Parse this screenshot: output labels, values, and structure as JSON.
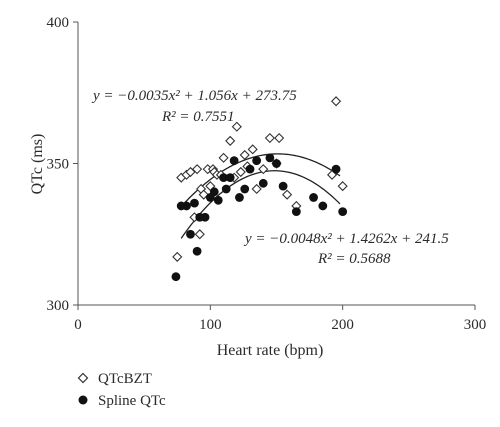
{
  "chart_data": {
    "type": "scatter",
    "title": "",
    "xlabel": "Heart rate (bpm)",
    "ylabel": "QTc (ms)",
    "xlim": [
      0,
      300
    ],
    "ylim": [
      300,
      400
    ],
    "xticks": [
      "0",
      "100",
      "200",
      "300"
    ],
    "yticks": [
      "300",
      "350",
      "400"
    ],
    "grid": false,
    "legend_position": "bottom-left",
    "series": [
      {
        "name": "QTcBZT",
        "marker": "open-diamond",
        "color": "#333333",
        "points": [
          [
            75,
            317
          ],
          [
            78,
            345
          ],
          [
            82,
            346
          ],
          [
            85,
            347
          ],
          [
            88,
            331
          ],
          [
            90,
            348
          ],
          [
            92,
            325
          ],
          [
            93,
            341
          ],
          [
            95,
            339
          ],
          [
            98,
            348
          ],
          [
            100,
            342
          ],
          [
            102,
            348
          ],
          [
            103,
            347
          ],
          [
            105,
            346
          ],
          [
            108,
            346
          ],
          [
            110,
            352
          ],
          [
            115,
            358
          ],
          [
            118,
            345
          ],
          [
            120,
            363
          ],
          [
            123,
            347
          ],
          [
            126,
            353
          ],
          [
            128,
            349
          ],
          [
            132,
            355
          ],
          [
            135,
            341
          ],
          [
            140,
            348
          ],
          [
            145,
            359
          ],
          [
            150,
            350
          ],
          [
            152,
            359
          ],
          [
            158,
            339
          ],
          [
            165,
            335
          ],
          [
            192,
            346
          ],
          [
            195,
            372
          ],
          [
            200,
            342
          ]
        ],
        "trendline": {
          "equation": "y = −0.0035x² + 1.056x + 273.75",
          "r2": "R² = 0.7551",
          "coefficients": [
            -0.0035,
            1.056,
            273.75
          ],
          "x_range": [
            78,
            198
          ]
        }
      },
      {
        "name": "Spline QTc",
        "marker": "filled-circle",
        "color": "#111111",
        "points": [
          [
            74,
            310
          ],
          [
            78,
            335
          ],
          [
            82,
            335
          ],
          [
            85,
            325
          ],
          [
            88,
            336
          ],
          [
            90,
            319
          ],
          [
            92,
            331
          ],
          [
            96,
            331
          ],
          [
            100,
            338
          ],
          [
            103,
            340
          ],
          [
            106,
            337
          ],
          [
            110,
            345
          ],
          [
            112,
            341
          ],
          [
            115,
            345
          ],
          [
            118,
            351
          ],
          [
            122,
            338
          ],
          [
            126,
            341
          ],
          [
            130,
            348
          ],
          [
            135,
            351
          ],
          [
            140,
            343
          ],
          [
            145,
            352
          ],
          [
            150,
            350
          ],
          [
            155,
            342
          ],
          [
            165,
            333
          ],
          [
            178,
            338
          ],
          [
            185,
            335
          ],
          [
            195,
            348
          ],
          [
            200,
            333
          ]
        ],
        "trendline": {
          "equation": "y = −0.0048x² + 1.4262x + 241.5",
          "r2": "R² = 0.5688",
          "coefficients": [
            -0.0048,
            1.4262,
            241.5
          ],
          "x_range": [
            78,
            198
          ]
        }
      }
    ]
  }
}
